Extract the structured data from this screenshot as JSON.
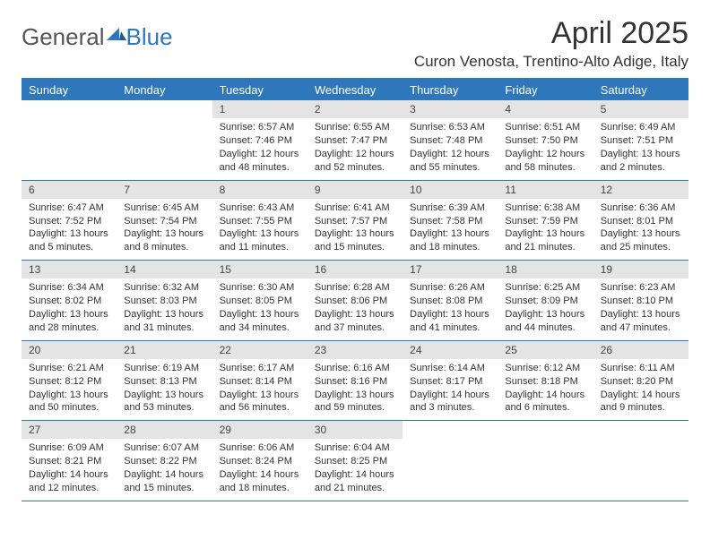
{
  "brand": {
    "general": "General",
    "blue": "Blue"
  },
  "title": "April 2025",
  "location": "Curon Venosta, Trentino-Alto Adige, Italy",
  "colors": {
    "header_bg": "#2f77bb",
    "header_text": "#ffffff",
    "daynum_bg": "#e4e4e4",
    "border": "#2f77bb",
    "text": "#333333"
  },
  "weekdays": [
    "Sunday",
    "Monday",
    "Tuesday",
    "Wednesday",
    "Thursday",
    "Friday",
    "Saturday"
  ],
  "layout": {
    "first_weekday_index": 2,
    "days_in_month": 30
  },
  "days": [
    {
      "n": 1,
      "sunrise": "6:57 AM",
      "sunset": "7:46 PM",
      "daylight": "12 hours and 48 minutes."
    },
    {
      "n": 2,
      "sunrise": "6:55 AM",
      "sunset": "7:47 PM",
      "daylight": "12 hours and 52 minutes."
    },
    {
      "n": 3,
      "sunrise": "6:53 AM",
      "sunset": "7:48 PM",
      "daylight": "12 hours and 55 minutes."
    },
    {
      "n": 4,
      "sunrise": "6:51 AM",
      "sunset": "7:50 PM",
      "daylight": "12 hours and 58 minutes."
    },
    {
      "n": 5,
      "sunrise": "6:49 AM",
      "sunset": "7:51 PM",
      "daylight": "13 hours and 2 minutes."
    },
    {
      "n": 6,
      "sunrise": "6:47 AM",
      "sunset": "7:52 PM",
      "daylight": "13 hours and 5 minutes."
    },
    {
      "n": 7,
      "sunrise": "6:45 AM",
      "sunset": "7:54 PM",
      "daylight": "13 hours and 8 minutes."
    },
    {
      "n": 8,
      "sunrise": "6:43 AM",
      "sunset": "7:55 PM",
      "daylight": "13 hours and 11 minutes."
    },
    {
      "n": 9,
      "sunrise": "6:41 AM",
      "sunset": "7:57 PM",
      "daylight": "13 hours and 15 minutes."
    },
    {
      "n": 10,
      "sunrise": "6:39 AM",
      "sunset": "7:58 PM",
      "daylight": "13 hours and 18 minutes."
    },
    {
      "n": 11,
      "sunrise": "6:38 AM",
      "sunset": "7:59 PM",
      "daylight": "13 hours and 21 minutes."
    },
    {
      "n": 12,
      "sunrise": "6:36 AM",
      "sunset": "8:01 PM",
      "daylight": "13 hours and 25 minutes."
    },
    {
      "n": 13,
      "sunrise": "6:34 AM",
      "sunset": "8:02 PM",
      "daylight": "13 hours and 28 minutes."
    },
    {
      "n": 14,
      "sunrise": "6:32 AM",
      "sunset": "8:03 PM",
      "daylight": "13 hours and 31 minutes."
    },
    {
      "n": 15,
      "sunrise": "6:30 AM",
      "sunset": "8:05 PM",
      "daylight": "13 hours and 34 minutes."
    },
    {
      "n": 16,
      "sunrise": "6:28 AM",
      "sunset": "8:06 PM",
      "daylight": "13 hours and 37 minutes."
    },
    {
      "n": 17,
      "sunrise": "6:26 AM",
      "sunset": "8:08 PM",
      "daylight": "13 hours and 41 minutes."
    },
    {
      "n": 18,
      "sunrise": "6:25 AM",
      "sunset": "8:09 PM",
      "daylight": "13 hours and 44 minutes."
    },
    {
      "n": 19,
      "sunrise": "6:23 AM",
      "sunset": "8:10 PM",
      "daylight": "13 hours and 47 minutes."
    },
    {
      "n": 20,
      "sunrise": "6:21 AM",
      "sunset": "8:12 PM",
      "daylight": "13 hours and 50 minutes."
    },
    {
      "n": 21,
      "sunrise": "6:19 AM",
      "sunset": "8:13 PM",
      "daylight": "13 hours and 53 minutes."
    },
    {
      "n": 22,
      "sunrise": "6:17 AM",
      "sunset": "8:14 PM",
      "daylight": "13 hours and 56 minutes."
    },
    {
      "n": 23,
      "sunrise": "6:16 AM",
      "sunset": "8:16 PM",
      "daylight": "13 hours and 59 minutes."
    },
    {
      "n": 24,
      "sunrise": "6:14 AM",
      "sunset": "8:17 PM",
      "daylight": "14 hours and 3 minutes."
    },
    {
      "n": 25,
      "sunrise": "6:12 AM",
      "sunset": "8:18 PM",
      "daylight": "14 hours and 6 minutes."
    },
    {
      "n": 26,
      "sunrise": "6:11 AM",
      "sunset": "8:20 PM",
      "daylight": "14 hours and 9 minutes."
    },
    {
      "n": 27,
      "sunrise": "6:09 AM",
      "sunset": "8:21 PM",
      "daylight": "14 hours and 12 minutes."
    },
    {
      "n": 28,
      "sunrise": "6:07 AM",
      "sunset": "8:22 PM",
      "daylight": "14 hours and 15 minutes."
    },
    {
      "n": 29,
      "sunrise": "6:06 AM",
      "sunset": "8:24 PM",
      "daylight": "14 hours and 18 minutes."
    },
    {
      "n": 30,
      "sunrise": "6:04 AM",
      "sunset": "8:25 PM",
      "daylight": "14 hours and 21 minutes."
    }
  ]
}
